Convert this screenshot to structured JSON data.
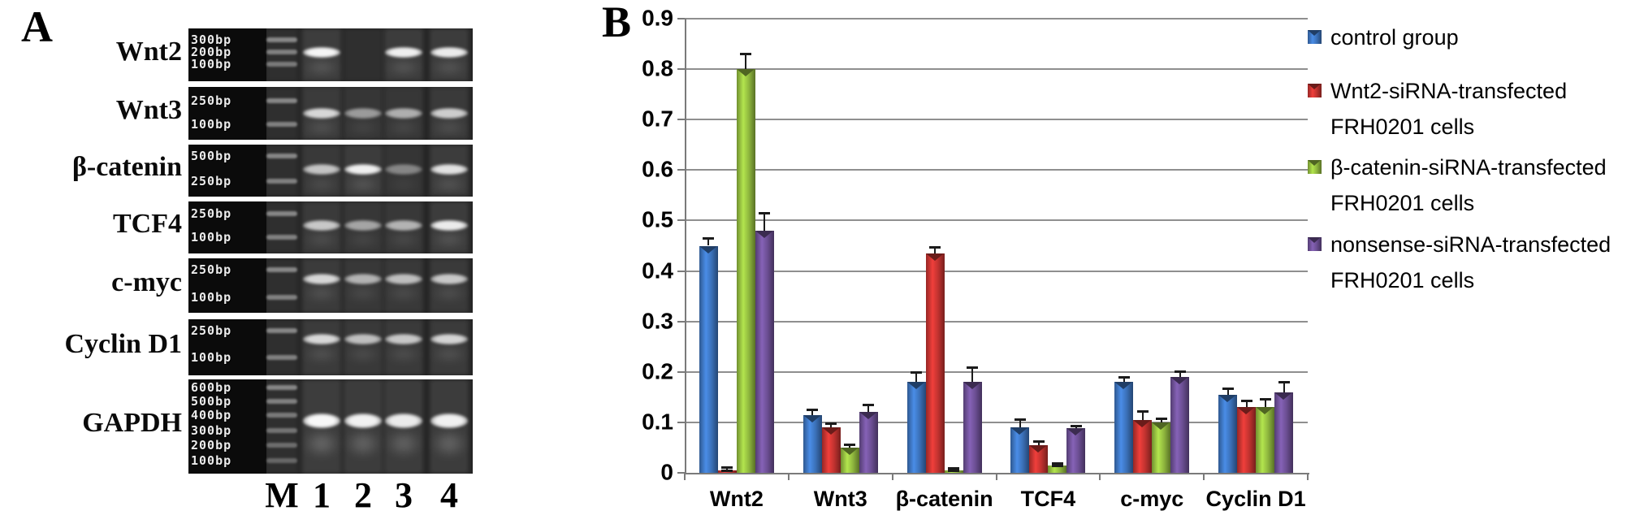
{
  "figure": {
    "panel_a_label": "A",
    "panel_b_label": "B"
  },
  "panel_a": {
    "lane_headers": [
      "M",
      "1",
      "2",
      "3",
      "4"
    ],
    "rows": [
      {
        "gene": "Wnt2",
        "bp_labels": [
          "300bp",
          "200bp",
          "100bp"
        ],
        "marker_positions": [
          0.21,
          0.44,
          0.68
        ],
        "band_position": 0.46,
        "lane_band_intensities": [
          0.95,
          0,
          0.92,
          0.9
        ]
      },
      {
        "gene": "Wnt3",
        "bp_labels": [
          "250bp",
          "100bp"
        ],
        "marker_positions": [
          0.26,
          0.7
        ],
        "band_position": 0.5,
        "lane_band_intensities": [
          0.8,
          0.5,
          0.6,
          0.75
        ]
      },
      {
        "gene": "β-catenin",
        "bp_labels": [
          "500bp",
          "250bp"
        ],
        "marker_positions": [
          0.22,
          0.7
        ],
        "band_position": 0.48,
        "lane_band_intensities": [
          0.7,
          0.92,
          0.4,
          0.85
        ]
      },
      {
        "gene": "TCF4",
        "bp_labels": [
          "250bp",
          "100bp"
        ],
        "marker_positions": [
          0.24,
          0.68
        ],
        "band_position": 0.46,
        "lane_band_intensities": [
          0.72,
          0.55,
          0.62,
          0.9
        ]
      },
      {
        "gene": "c-myc",
        "bp_labels": [
          "250bp",
          "100bp"
        ],
        "marker_positions": [
          0.21,
          0.72
        ],
        "band_position": 0.38,
        "lane_band_intensities": [
          0.8,
          0.62,
          0.68,
          0.72
        ]
      },
      {
        "gene": "Cyclin D1",
        "bp_labels": [
          "250bp",
          "100bp"
        ],
        "marker_positions": [
          0.21,
          0.68
        ],
        "band_position": 0.36,
        "lane_band_intensities": [
          0.8,
          0.68,
          0.72,
          0.78
        ]
      },
      {
        "gene": "GAPDH",
        "bp_labels": [
          "600bp",
          "500bp",
          "400bp",
          "300bp",
          "200bp",
          "100bp"
        ],
        "marker_positions": [
          0.09,
          0.23,
          0.38,
          0.54,
          0.7,
          0.86
        ],
        "band_position": 0.44,
        "lane_band_intensities": [
          0.97,
          0.93,
          0.9,
          0.93
        ],
        "thick_band": true
      }
    ]
  },
  "chart_data": {
    "type": "bar",
    "title": "",
    "xlabel": "",
    "ylabel": "",
    "categories": [
      "Wnt2",
      "Wnt3",
      "β-catenin",
      "TCF4",
      "c-myc",
      "Cyclin D1"
    ],
    "series": [
      {
        "name": "control group",
        "color": "#3b71b9",
        "values": [
          0.45,
          0.115,
          0.18,
          0.09,
          0.18,
          0.155
        ],
        "errors": [
          0.015,
          0.01,
          0.02,
          0.016,
          0.01,
          0.012
        ]
      },
      {
        "name": "Wnt2-siRNA-transfected FRH0201 cells",
        "color": "#c0322f",
        "values": [
          0.005,
          0.09,
          0.435,
          0.055,
          0.105,
          0.13
        ],
        "errors": [
          0.006,
          0.008,
          0.012,
          0.008,
          0.018,
          0.013
        ]
      },
      {
        "name": "β-catenin-siRNA-transfected FRH0201 cells",
        "color": "#8fb73e",
        "values": [
          0.8,
          0.05,
          0.005,
          0.015,
          0.1,
          0.13
        ],
        "errors": [
          0.03,
          0.007,
          0.005,
          0.004,
          0.008,
          0.016
        ]
      },
      {
        "name": "nonsense-siRNA-transfected FRH0201 cells",
        "color": "#6b4e92",
        "values": [
          0.48,
          0.12,
          0.18,
          0.088,
          0.19,
          0.16
        ],
        "errors": [
          0.035,
          0.016,
          0.03,
          0.006,
          0.012,
          0.02
        ]
      }
    ],
    "ylim": [
      0,
      0.9
    ],
    "ytick_step": 0.1,
    "grid": true,
    "legend_position": "right",
    "legend_items": [
      {
        "lines": [
          "control group"
        ]
      },
      {
        "lines": [
          "Wnt2-siRNA-transfected",
          "FRH0201 cells"
        ]
      },
      {
        "lines": [
          "β-catenin-siRNA-transfected",
          "FRH0201 cells"
        ]
      },
      {
        "lines": [
          "nonsense-siRNA-transfected",
          "FRH0201 cells"
        ]
      }
    ]
  }
}
